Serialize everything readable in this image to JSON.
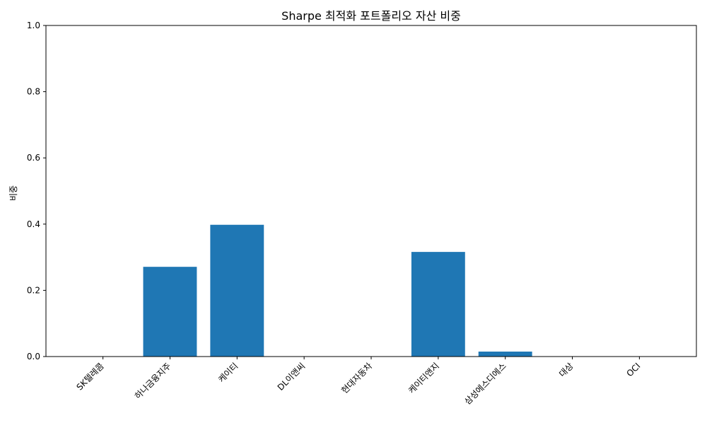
{
  "chart_data": {
    "type": "bar",
    "title": "Sharpe 최적화 포트폴리오 자산 비중",
    "xlabel": "",
    "ylabel": "비중",
    "categories": [
      "SK텔레콤",
      "하나금융지주",
      "케이티",
      "DL이앤씨",
      "현대자동차",
      "케이티앤지",
      "삼성에스디에스",
      "대상",
      "OCI"
    ],
    "values": [
      0.0,
      0.271,
      0.398,
      0.0,
      0.0,
      0.316,
      0.015,
      0.0,
      0.0
    ],
    "ylim": [
      0,
      1.0
    ],
    "yticks": [
      "0.0",
      "0.2",
      "0.4",
      "0.6",
      "0.8",
      "1.0"
    ],
    "grid": false,
    "bar_color": "#1f77b4"
  }
}
